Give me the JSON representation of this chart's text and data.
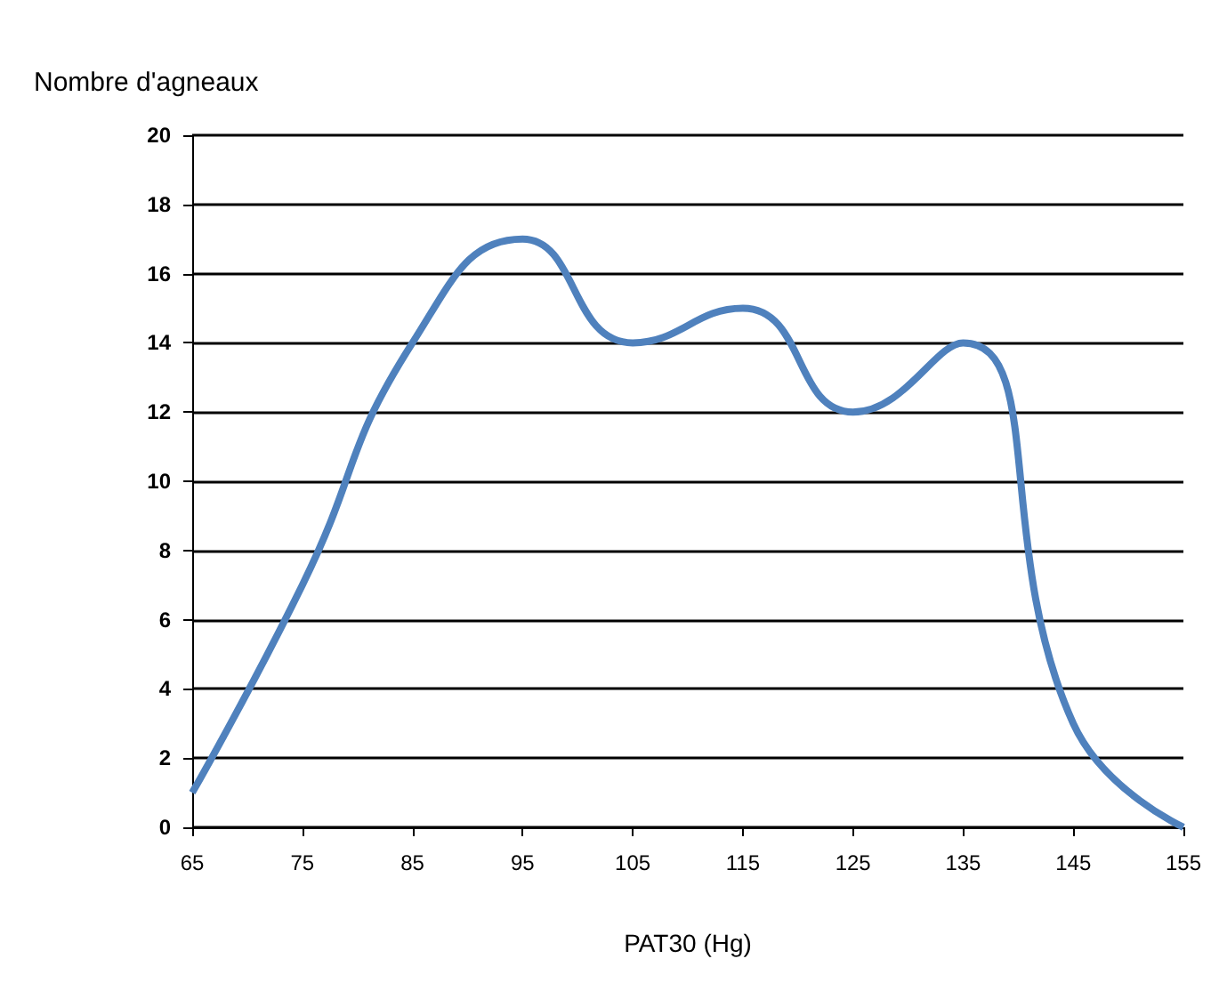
{
  "chart_data": {
    "type": "line",
    "ylabel": "Nombre d'agneaux",
    "xlabel": "PAT30 (Hg)",
    "x": [
      65,
      75,
      85,
      95,
      105,
      115,
      125,
      135,
      145,
      155
    ],
    "series": [
      {
        "color": "#4f81bd",
        "values": [
          1,
          7,
          14,
          17,
          14,
          15,
          12,
          14,
          3,
          0
        ]
      }
    ],
    "xlim": [
      65,
      155
    ],
    "xticks": [
      65,
      75,
      85,
      95,
      105,
      115,
      125,
      135,
      145,
      155
    ],
    "ylim": [
      0,
      20
    ],
    "yticks": [
      0,
      2,
      4,
      6,
      8,
      10,
      12,
      14,
      16,
      18,
      20
    ],
    "grid": "y",
    "marker": "none",
    "line_style": "solid"
  }
}
